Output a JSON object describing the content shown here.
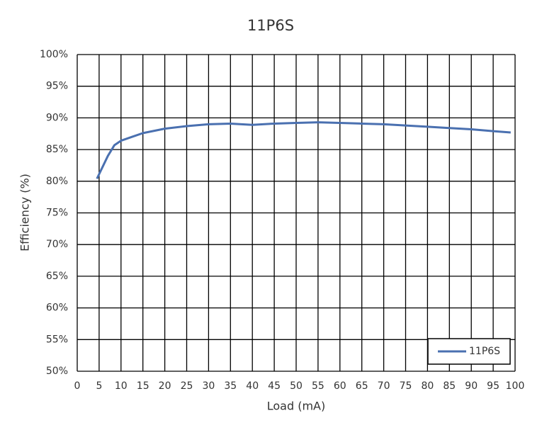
{
  "chart_data": {
    "type": "line",
    "title": "11P6S",
    "x_label": "Load (mA)",
    "y_label": "Efficiency (%)",
    "x": [
      4.5,
      7,
      8.5,
      10,
      12.5,
      15,
      20,
      25,
      30,
      35,
      40,
      45,
      50,
      55,
      60,
      65,
      70,
      75,
      80,
      85,
      90,
      95,
      99
    ],
    "series": [
      {
        "name": "11P6S",
        "color": "#4a70b0",
        "values": [
          80.4,
          84,
          85.7,
          86.4,
          87,
          87.6,
          88.3,
          88.7,
          89.0,
          89.1,
          88.9,
          89.1,
          89.2,
          89.3,
          89.2,
          89.1,
          89.0,
          88.8,
          88.6,
          88.4,
          88.2,
          87.9,
          87.7
        ]
      }
    ],
    "xlim": [
      0,
      100
    ],
    "xticks": [
      0,
      5,
      10,
      15,
      20,
      25,
      30,
      35,
      40,
      45,
      50,
      55,
      60,
      65,
      70,
      75,
      80,
      85,
      90,
      95,
      100
    ],
    "ylim": [
      50,
      100
    ],
    "yticks": [
      {
        "value": 50,
        "label": "50%"
      },
      {
        "value": 55,
        "label": "55%"
      },
      {
        "value": 60,
        "label": "60%"
      },
      {
        "value": 65,
        "label": "65%"
      },
      {
        "value": 70,
        "label": "70%"
      },
      {
        "value": 75,
        "label": "75%"
      },
      {
        "value": 80,
        "label": "80%"
      },
      {
        "value": 85,
        "label": "85%"
      },
      {
        "value": 90,
        "label": "90%"
      },
      {
        "value": 95,
        "label": "95%"
      },
      {
        "value": 100,
        "label": "100%"
      }
    ],
    "grid": true,
    "legend_position": "lower right"
  }
}
